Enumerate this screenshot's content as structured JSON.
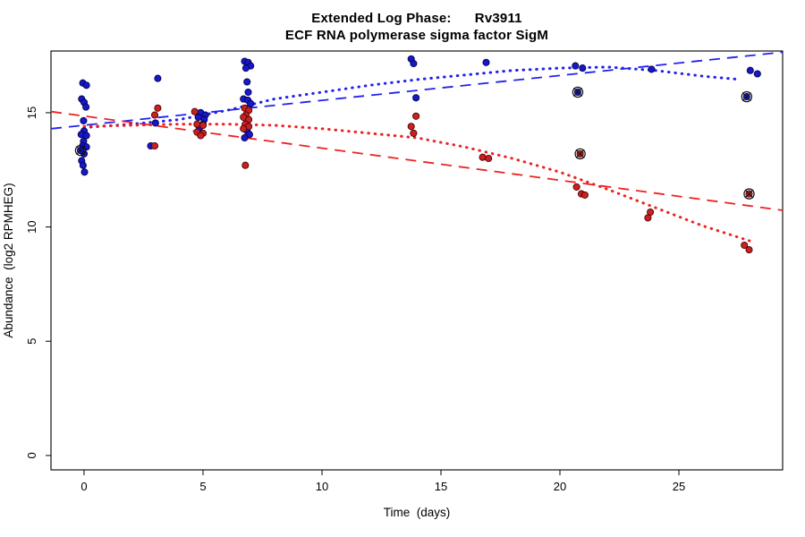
{
  "titles": {
    "line1": "Extended Log Phase:      Rv3911",
    "line2": "ECF RNA polymerase sigma factor SigM"
  },
  "axes": {
    "x": {
      "label": "Time  (days)",
      "ticks": [
        0,
        5,
        10,
        15,
        20,
        25
      ],
      "range": [
        -1.39,
        29.36
      ]
    },
    "y": {
      "label": "Abundance  (log2 RPMHEG)",
      "ticks": [
        0,
        5,
        10,
        15
      ],
      "range": [
        -0.63,
        17.7
      ]
    }
  },
  "colors": {
    "background": "#ffffff",
    "axis": "#000000",
    "blue_point_fill": "#1717cb",
    "blue_point_stroke": "#03034d",
    "red_point_fill": "#c92121",
    "red_point_stroke": "#4d0303",
    "blue_line": "#2222ee",
    "red_line": "#ee2222",
    "outlier_ring": "#111111"
  },
  "chart_data": {
    "type": "scatter",
    "title": "Extended Log Phase: Rv3911 — ECF RNA polymerase sigma factor SigM",
    "xlabel": "Time (days)",
    "ylabel": "Abundance (log2 RPMHEG)",
    "xlim": [
      -1.39,
      29.36
    ],
    "ylim": [
      -0.63,
      17.7
    ],
    "grid": false,
    "legend": "none",
    "series": [
      {
        "name": "blue-condition-points",
        "marker": "filled-circle",
        "fill": "#1717cb",
        "stroke": "#03034d",
        "points": [
          [
            -0.05,
            16.3
          ],
          [
            0.1,
            16.2
          ],
          [
            -0.1,
            15.6
          ],
          [
            0,
            15.45
          ],
          [
            0.08,
            15.25
          ],
          [
            -0.02,
            14.65
          ],
          [
            0,
            14.2
          ],
          [
            -0.12,
            14.05
          ],
          [
            0.1,
            14.0
          ],
          [
            -0.02,
            13.75
          ],
          [
            -0.06,
            13.55
          ],
          [
            0.1,
            13.5
          ],
          [
            0,
            13.2
          ],
          [
            -0.1,
            12.9
          ],
          [
            -0.04,
            12.7
          ],
          [
            0.02,
            12.4
          ],
          [
            3.1,
            16.5
          ],
          [
            3.0,
            14.55
          ],
          [
            2.8,
            13.55
          ],
          [
            4.9,
            15.0
          ],
          [
            5.1,
            14.9
          ],
          [
            4.8,
            14.8
          ],
          [
            5.05,
            14.7
          ],
          [
            5.0,
            14.5
          ],
          [
            4.85,
            14.35
          ],
          [
            6.75,
            17.25
          ],
          [
            6.9,
            17.2
          ],
          [
            7.0,
            17.05
          ],
          [
            6.8,
            16.95
          ],
          [
            6.85,
            16.35
          ],
          [
            6.9,
            15.9
          ],
          [
            6.7,
            15.6
          ],
          [
            6.88,
            15.55
          ],
          [
            7.0,
            15.4
          ],
          [
            6.85,
            14.2
          ],
          [
            6.95,
            14.05
          ],
          [
            6.75,
            13.9
          ],
          [
            13.75,
            17.35
          ],
          [
            13.85,
            17.15
          ],
          [
            13.95,
            15.65
          ],
          [
            16.9,
            17.2
          ],
          [
            20.65,
            17.05
          ],
          [
            20.95,
            16.95
          ],
          [
            23.85,
            16.9
          ],
          [
            28.0,
            16.85
          ],
          [
            28.3,
            16.7
          ]
        ]
      },
      {
        "name": "red-condition-points",
        "marker": "filled-circle",
        "fill": "#c92121",
        "stroke": "#4d0303",
        "points": [
          [
            3.1,
            15.2
          ],
          [
            2.97,
            14.9
          ],
          [
            2.97,
            13.55
          ],
          [
            4.65,
            15.05
          ],
          [
            4.75,
            14.5
          ],
          [
            5.0,
            14.45
          ],
          [
            4.75,
            14.15
          ],
          [
            5.0,
            14.1
          ],
          [
            4.9,
            14.0
          ],
          [
            6.75,
            15.2
          ],
          [
            6.92,
            15.1
          ],
          [
            6.8,
            14.9
          ],
          [
            6.7,
            14.8
          ],
          [
            6.92,
            14.7
          ],
          [
            6.78,
            14.5
          ],
          [
            6.92,
            14.4
          ],
          [
            6.7,
            14.3
          ],
          [
            6.78,
            12.7
          ],
          [
            13.95,
            14.85
          ],
          [
            13.75,
            14.4
          ],
          [
            13.85,
            14.1
          ],
          [
            16.75,
            13.05
          ],
          [
            17.0,
            13.0
          ],
          [
            20.7,
            11.75
          ],
          [
            20.9,
            11.45
          ],
          [
            21.05,
            11.4
          ],
          [
            23.8,
            10.65
          ],
          [
            23.7,
            10.4
          ],
          [
            27.75,
            9.2
          ],
          [
            27.95,
            9.0
          ]
        ]
      }
    ],
    "outlier_points": [
      {
        "x": -0.15,
        "y": 13.35,
        "fill": "#1717cb",
        "stroke": "#03034d"
      },
      {
        "x": 20.75,
        "y": 15.9,
        "fill": "#1717cb",
        "stroke": "#03034d"
      },
      {
        "x": 20.85,
        "y": 13.2,
        "fill": "#c92121",
        "stroke": "#4d0303"
      },
      {
        "x": 27.85,
        "y": 15.7,
        "fill": "#1717cb",
        "stroke": "#03034d"
      },
      {
        "x": 27.95,
        "y": 11.45,
        "fill": "#c92121",
        "stroke": "#4d0303"
      }
    ],
    "trend_lines": [
      {
        "name": "blue-linear-fit",
        "style": "dashed",
        "color": "#2222ee",
        "points": [
          [
            -1.39,
            14.3
          ],
          [
            29.36,
            17.65
          ]
        ]
      },
      {
        "name": "red-linear-fit",
        "style": "dashed",
        "color": "#ee2222",
        "points": [
          [
            -1.39,
            15.05
          ],
          [
            29.36,
            10.73
          ]
        ]
      },
      {
        "name": "blue-loess-fit",
        "style": "dotted",
        "color": "#2222ee",
        "points": [
          [
            0,
            14.35
          ],
          [
            2,
            14.5
          ],
          [
            4,
            14.7
          ],
          [
            6,
            15.1
          ],
          [
            8,
            15.6
          ],
          [
            10,
            15.9
          ],
          [
            12,
            16.2
          ],
          [
            14,
            16.45
          ],
          [
            16,
            16.65
          ],
          [
            18,
            16.85
          ],
          [
            20,
            16.95
          ],
          [
            22,
            17.0
          ],
          [
            24,
            16.85
          ],
          [
            26,
            16.6
          ],
          [
            27.6,
            16.45
          ]
        ]
      },
      {
        "name": "red-loess-fit",
        "style": "dotted",
        "color": "#ee2222",
        "points": [
          [
            0,
            14.4
          ],
          [
            2,
            14.45
          ],
          [
            4,
            14.5
          ],
          [
            6,
            14.5
          ],
          [
            8,
            14.45
          ],
          [
            10,
            14.3
          ],
          [
            12,
            14.1
          ],
          [
            14,
            13.9
          ],
          [
            16,
            13.5
          ],
          [
            18,
            13.0
          ],
          [
            20,
            12.4
          ],
          [
            22,
            11.65
          ],
          [
            24,
            10.85
          ],
          [
            26,
            10.05
          ],
          [
            28.1,
            9.35
          ]
        ]
      }
    ]
  }
}
